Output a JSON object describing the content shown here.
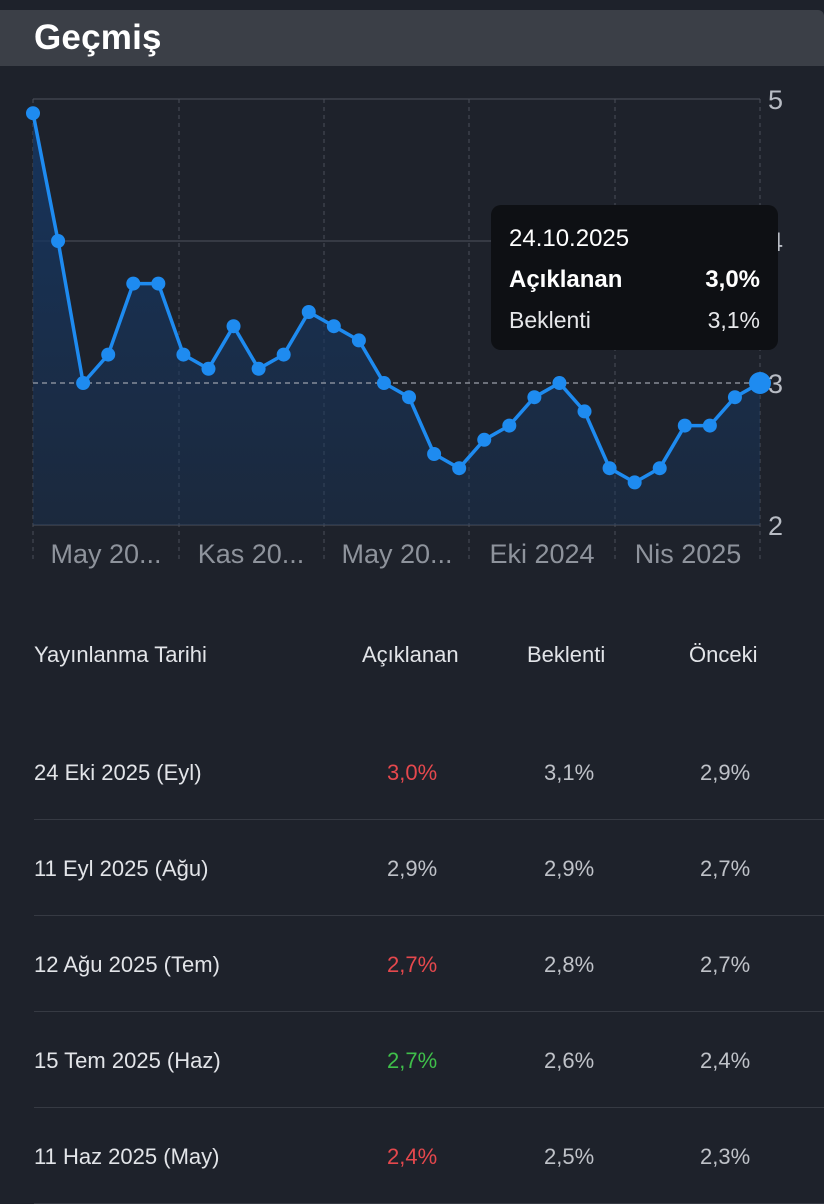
{
  "header": {
    "title": "Geçmiş"
  },
  "tooltip": {
    "date": "24.10.2025",
    "actual_label": "Açıklanan",
    "actual_value": "3,0%",
    "forecast_label": "Beklenti",
    "forecast_value": "3,1%"
  },
  "chart_data": {
    "type": "area",
    "x_tick_labels": [
      "May 20...",
      "Kas 20...",
      "May 20...",
      "Eki 2024",
      "Nis 2025"
    ],
    "y_tick_labels": [
      "5",
      "4",
      "3",
      "2"
    ],
    "ylim": [
      2,
      5
    ],
    "grid": true,
    "reference_line": 3.0,
    "values": [
      4.9,
      4.0,
      3.0,
      3.2,
      3.7,
      3.7,
      3.2,
      3.1,
      3.4,
      3.1,
      3.2,
      3.5,
      3.4,
      3.3,
      3.0,
      2.9,
      2.5,
      2.4,
      2.6,
      2.7,
      2.9,
      3.0,
      2.8,
      2.4,
      2.3,
      2.4,
      2.7,
      2.7,
      2.9,
      3.0
    ],
    "line_color": "#1e8bf0",
    "fill_color": "#16355e"
  },
  "table": {
    "headers": [
      "Yayınlanma Tarihi",
      "Açıklanan",
      "Beklenti",
      "Önceki"
    ],
    "rows": [
      {
        "date": "24 Eki 2025 (Eyl)",
        "actual": "3,0%",
        "forecast": "3,1%",
        "previous": "2,9%",
        "actual_color": "#e5484d"
      },
      {
        "date": "11 Eyl 2025 (Ağu)",
        "actual": "2,9%",
        "forecast": "2,9%",
        "previous": "2,7%",
        "actual_color": "#bfc2c8"
      },
      {
        "date": "12 Ağu 2025 (Tem)",
        "actual": "2,7%",
        "forecast": "2,8%",
        "previous": "2,7%",
        "actual_color": "#e5484d"
      },
      {
        "date": "15 Tem 2025 (Haz)",
        "actual": "2,7%",
        "forecast": "2,6%",
        "previous": "2,4%",
        "actual_color": "#3fbf4a"
      },
      {
        "date": "11 Haz 2025 (May)",
        "actual": "2,4%",
        "forecast": "2,5%",
        "previous": "2,3%",
        "actual_color": "#e5484d"
      }
    ]
  }
}
